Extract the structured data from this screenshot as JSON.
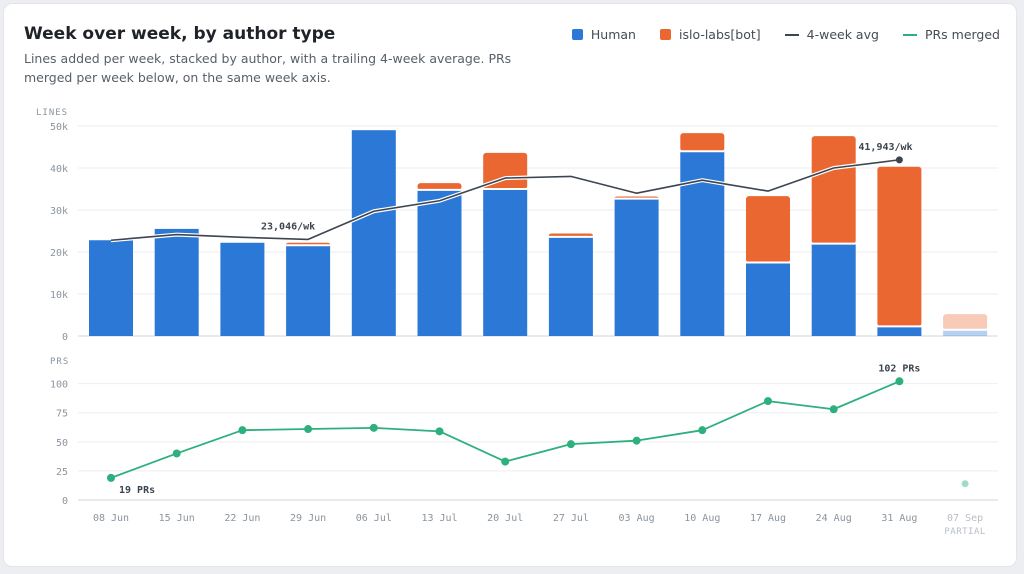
{
  "title": "Week over week, by author type",
  "subtitle": "Lines added per week, stacked by author, with a trailing 4-week average. PRs merged per week below, on the same week axis.",
  "legend": [
    {
      "label": "Human",
      "kind": "box",
      "color": "#2b78d6"
    },
    {
      "label": "islo-labs[bot]",
      "kind": "box",
      "color": "#eb6732"
    },
    {
      "label": "4-week avg",
      "kind": "line",
      "color": "#3d4550"
    },
    {
      "label": "PRs merged",
      "kind": "line",
      "color": "#2eb07e"
    }
  ],
  "chart_data": [
    {
      "type": "bar",
      "stacked": true,
      "ylabel": "LINES",
      "ylim": [
        0,
        50000
      ],
      "yticks": [
        0,
        10000,
        20000,
        30000,
        40000,
        50000
      ],
      "ytick_labels": [
        "0",
        "10k",
        "20k",
        "30k",
        "40k",
        "50k"
      ],
      "categories": [
        "08 Jun",
        "15 Jun",
        "22 Jun",
        "29 Jun",
        "06 Jul",
        "13 Jul",
        "20 Jul",
        "27 Jul",
        "03 Aug",
        "10 Aug",
        "17 Aug",
        "24 Aug",
        "31 Aug",
        "07 Sep"
      ],
      "partial_category": "07 Sep",
      "partial_label": "PARTIAL",
      "series": [
        {
          "name": "Human",
          "color": "#2b78d6",
          "values": [
            22800,
            25500,
            22200,
            21600,
            49000,
            34800,
            35000,
            23600,
            32700,
            44000,
            17500,
            22000,
            2300,
            1500
          ]
        },
        {
          "name": "islo-labs[bot]",
          "color": "#eb6732",
          "values": [
            0,
            0,
            0,
            600,
            0,
            1600,
            8600,
            800,
            500,
            4300,
            15800,
            25600,
            38000,
            3700
          ]
        }
      ],
      "avg_line": {
        "name": "4-week avg",
        "color": "#3d4550",
        "values": [
          22800,
          24150,
          23500,
          23000,
          29700,
          32200,
          37600,
          38000,
          34000,
          37100,
          34500,
          40000,
          41943
        ]
      },
      "annotations": [
        {
          "index": 3,
          "text": "23,046/wk"
        },
        {
          "index": 12,
          "text": "41,943/wk"
        }
      ]
    },
    {
      "type": "line",
      "ylabel": "PRS",
      "ylim": [
        0,
        110
      ],
      "yticks": [
        0,
        25,
        50,
        75,
        100
      ],
      "ytick_labels": [
        "0",
        "25",
        "50",
        "75",
        "100"
      ],
      "categories": [
        "08 Jun",
        "15 Jun",
        "22 Jun",
        "29 Jun",
        "06 Jul",
        "13 Jul",
        "20 Jul",
        "27 Jul",
        "03 Aug",
        "10 Aug",
        "17 Aug",
        "24 Aug",
        "31 Aug",
        "07 Sep"
      ],
      "series": [
        {
          "name": "PRs merged",
          "color": "#2eb07e",
          "values": [
            19,
            40,
            60,
            61,
            62,
            59,
            33,
            48,
            51,
            60,
            85,
            78,
            102,
            14
          ]
        }
      ],
      "annotations": [
        {
          "index": 0,
          "text": "19 PRs"
        },
        {
          "index": 12,
          "text": "102 PRs"
        }
      ]
    }
  ]
}
